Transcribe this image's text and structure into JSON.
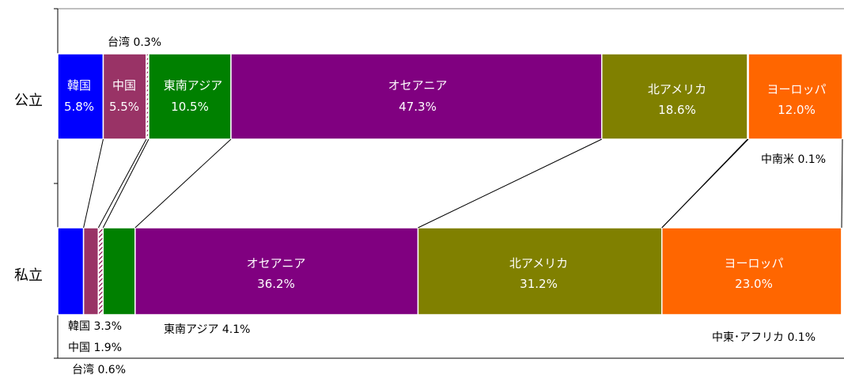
{
  "chart_data": {
    "type": "bar",
    "orientation": "horizontal",
    "stacked": "100%",
    "title": "",
    "xlabel": "",
    "ylabel": "",
    "grid": false,
    "legend": "none",
    "categories": [
      "公立",
      "私立"
    ],
    "series": [
      {
        "name": "韓国",
        "values": [
          5.8,
          3.3
        ],
        "color": "#0000ff"
      },
      {
        "name": "中国",
        "values": [
          5.5,
          1.9
        ],
        "color": "#993366"
      },
      {
        "name": "台湾",
        "values": [
          0.3,
          0.6
        ],
        "color": "#ffffff",
        "pattern": "hatched"
      },
      {
        "name": "東南アジア",
        "values": [
          10.5,
          4.1
        ],
        "color": "#008000"
      },
      {
        "name": "オセアニア",
        "values": [
          47.3,
          36.2
        ],
        "color": "#800080"
      },
      {
        "name": "北アメリカ",
        "values": [
          18.6,
          31.2
        ],
        "color": "#808000"
      },
      {
        "name": "中南米",
        "values": [
          0.1,
          0.0
        ],
        "color": "#ffffff"
      },
      {
        "name": "ヨーロッパ",
        "values": [
          12.0,
          23.0
        ],
        "color": "#ff6600"
      },
      {
        "name": "中東・アフリカ",
        "values": [
          0.0,
          0.1
        ],
        "color": "#ffffff"
      }
    ],
    "annotations": {
      "kr_pub": "韓国",
      "kr_pub_v": "5.8%",
      "cn_pub": "中国",
      "cn_pub_v": "5.5%",
      "tw_pub": "台湾 0.3%",
      "sea_pub": "東南アジア",
      "sea_pub_v": "10.5%",
      "oc_pub": "オセアニア",
      "oc_pub_v": "47.3%",
      "na_pub": "北アメリカ",
      "na_pub_v": "18.6%",
      "eu_pub": "ヨーロッパ",
      "eu_pub_v": "12.0%",
      "la_pub": "中南米 0.1%",
      "oc_priv": "オセアニア",
      "oc_priv_v": "36.2%",
      "na_priv": "北アメリカ",
      "na_priv_v": "31.2%",
      "eu_priv": "ヨーロッパ",
      "eu_priv_v": "23.0%",
      "kr_priv": "韓国 3.3%",
      "cn_priv": "中国 1.9%",
      "tw_priv": "台湾 0.6%",
      "sea_priv": "東南アジア 4.1%",
      "me_priv": "中東･アフリカ 0.1%"
    }
  }
}
